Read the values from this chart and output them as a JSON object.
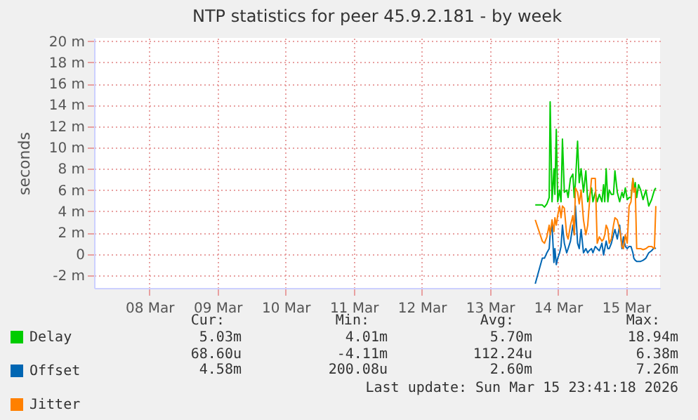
{
  "chart_data": {
    "type": "line",
    "title": "NTP statistics for peer 45.9.2.181 - by week",
    "ylabel": "seconds",
    "x": [
      "2026-03-14T04:00",
      "2026-03-14T06:30",
      "2026-03-14T07:15",
      "2026-03-14T08:05",
      "2026-03-14T08:55",
      "2026-03-14T09:15",
      "2026-03-14T09:55",
      "2026-03-14T10:35",
      "2026-03-14T10:55",
      "2026-03-14T11:25",
      "2026-03-14T11:55",
      "2026-03-14T12:35",
      "2026-03-14T13:05",
      "2026-03-14T13:35",
      "2026-03-14T14:15",
      "2026-03-14T15:05",
      "2026-03-14T15:35",
      "2026-03-14T16:25",
      "2026-03-14T17:15",
      "2026-03-14T17:45",
      "2026-03-14T18:10",
      "2026-03-14T18:55",
      "2026-03-14T19:30",
      "2026-03-14T20:10",
      "2026-03-14T21:00",
      "2026-03-14T21:50",
      "2026-03-14T22:30",
      "2026-03-14T23:00",
      "2026-03-14T23:50",
      "2026-03-15T00:20",
      "2026-03-15T01:10",
      "2026-03-15T01:50",
      "2026-03-15T02:35",
      "2026-03-15T03:30",
      "2026-03-15T04:05",
      "2026-03-15T04:30",
      "2026-03-15T05:00",
      "2026-03-15T05:35",
      "2026-03-15T06:05",
      "2026-03-15T06:50",
      "2026-03-15T07:35",
      "2026-03-15T08:05",
      "2026-03-15T08:55",
      "2026-03-15T09:45",
      "2026-03-15T10:35",
      "2026-03-15T11:05",
      "2026-03-15T11:45",
      "2026-03-15T12:25",
      "2026-03-15T13:05",
      "2026-03-15T13:45",
      "2026-03-15T14:25",
      "2026-03-15T14:45",
      "2026-03-15T15:15",
      "2026-03-15T15:45",
      "2026-03-15T16:25",
      "2026-03-15T17:10",
      "2026-03-15T18:00",
      "2026-03-15T19:00",
      "2026-03-15T20:00",
      "2026-03-15T21:00",
      "2026-03-15T22:00",
      "2026-03-15T22:30"
    ],
    "series": [
      {
        "name": "Delay",
        "color": "#00cc00",
        "values": [
          4.6,
          4.6,
          4.4,
          4.7,
          5.3,
          14.3,
          4.9,
          8.0,
          5.6,
          11.7,
          4.9,
          6.0,
          4.9,
          10.8,
          5.8,
          6.0,
          5.3,
          7.1,
          7.5,
          5.3,
          6.7,
          10.6,
          6.7,
          8.0,
          5.8,
          7.8,
          4.9,
          5.3,
          6.2,
          4.9,
          5.8,
          4.9,
          5.6,
          4.9,
          6.5,
          4.9,
          8.0,
          4.9,
          6.0,
          5.6,
          5.6,
          7.8,
          5.8,
          4.9,
          5.8,
          5.3,
          6.2,
          5.1,
          5.3,
          5.3,
          7.1,
          6.0,
          6.7,
          5.3,
          6.5,
          6.0,
          5.1,
          6.0,
          4.5,
          5.1,
          6.0,
          6.2
        ]
      },
      {
        "name": "Offset",
        "color": "#0066b3",
        "values": [
          -2.8,
          -0.4,
          -0.4,
          0.1,
          0.5,
          1.8,
          2.7,
          -0.8,
          0.5,
          -1.0,
          -0.4,
          0.1,
          0.7,
          2.7,
          1.0,
          0.1,
          0.5,
          1.2,
          2.7,
          1.8,
          4.5,
          1.0,
          0.5,
          2.3,
          0.1,
          0.5,
          0.1,
          0.3,
          0.5,
          0.1,
          0.7,
          0.5,
          0.3,
          1.0,
          -0.1,
          0.5,
          1.2,
          0.5,
          0.5,
          1.0,
          1.8,
          2.3,
          1.4,
          2.7,
          0.5,
          1.6,
          0.7,
          0.5,
          0.7,
          0.7,
          0.1,
          -0.4,
          -0.6,
          -0.7,
          -0.7,
          -0.7,
          -0.6,
          -0.4,
          0.1,
          0.3,
          0.6,
          0.5
        ]
      },
      {
        "name": "Jitter",
        "color": "#ff8000",
        "values": [
          3.2,
          1.2,
          1.0,
          1.6,
          2.7,
          1.8,
          3.2,
          2.1,
          3.4,
          2.7,
          3.6,
          4.5,
          3.4,
          4.5,
          4.3,
          1.8,
          1.4,
          2.7,
          3.6,
          1.8,
          6.2,
          5.8,
          4.7,
          6.0,
          3.2,
          1.8,
          2.7,
          4.5,
          7.1,
          7.1,
          7.1,
          1.0,
          1.6,
          1.2,
          1.4,
          1.8,
          2.7,
          2.3,
          1.0,
          1.4,
          2.7,
          3.4,
          3.2,
          2.3,
          0.7,
          0.5,
          1.8,
          1.0,
          4.5,
          4.9,
          7.1,
          5.8,
          6.2,
          0.5,
          0.5,
          0.5,
          0.4,
          0.5,
          0.7,
          0.7,
          0.5,
          4.5
        ]
      }
    ],
    "xlim": [
      "2026-03-07T16:30",
      "2026-03-16T00:00"
    ],
    "xticks": [
      {
        "value": "2026-03-08T12:00",
        "label": "08 Mar"
      },
      {
        "value": "2026-03-09T12:00",
        "label": "09 Mar"
      },
      {
        "value": "2026-03-10T12:00",
        "label": "10 Mar"
      },
      {
        "value": "2026-03-11T12:00",
        "label": "11 Mar"
      },
      {
        "value": "2026-03-12T12:00",
        "label": "12 Mar"
      },
      {
        "value": "2026-03-13T12:00",
        "label": "13 Mar"
      },
      {
        "value": "2026-03-14T12:00",
        "label": "14 Mar"
      },
      {
        "value": "2026-03-15T12:00",
        "label": "15 Mar"
      }
    ],
    "ylim": [
      -3.2,
      20.3
    ],
    "yticks": [
      {
        "value": -2,
        "label": "-2 m"
      },
      {
        "value": 0,
        "label": "0"
      },
      {
        "value": 2,
        "label": "2 m"
      },
      {
        "value": 4,
        "label": "4 m"
      },
      {
        "value": 6,
        "label": "6 m"
      },
      {
        "value": 8,
        "label": "8 m"
      },
      {
        "value": 10,
        "label": "10 m"
      },
      {
        "value": 12,
        "label": "12 m"
      },
      {
        "value": 14,
        "label": "14 m"
      },
      {
        "value": 16,
        "label": "16 m"
      },
      {
        "value": 18,
        "label": "18 m"
      },
      {
        "value": 20,
        "label": "20 m"
      }
    ],
    "grid": true,
    "legend": "bottom",
    "marker": "none",
    "line_style": "solid",
    "annotations": [
      "Cur:",
      "Min:",
      "Avg:",
      "Max:",
      "5.03m",
      "4.01m",
      "5.70m",
      "18.94m",
      "68.60u",
      "-4.11m",
      "112.24u",
      "6.38m",
      "4.58m",
      "200.08u",
      "2.60m",
      "7.26m",
      "Last update: Sun Mar 15 23:41:18 2026"
    ]
  }
}
